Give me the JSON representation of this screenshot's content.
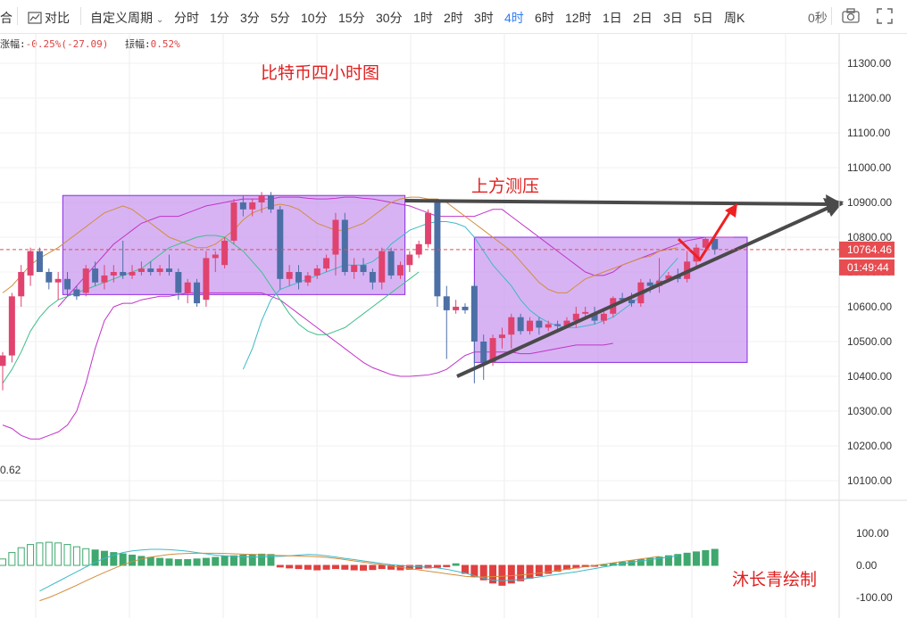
{
  "toolbar": {
    "left_partial": "合",
    "compare_label": "对比",
    "custom_period_label": "自定义周期",
    "periods": [
      "分时",
      "1分",
      "3分",
      "5分",
      "10分",
      "15分",
      "30分",
      "1时",
      "2时",
      "3时",
      "4时",
      "6时",
      "12时",
      "1日",
      "2日",
      "3日",
      "5日",
      "周K"
    ],
    "active_period": "4时",
    "seconds_label": "0秒"
  },
  "info_bar": {
    "change_label": "涨幅:",
    "change_value": "-0.25%(-27.09)",
    "amplitude_label": "振幅:",
    "amplitude_value": "0.52%"
  },
  "annotations": {
    "title": "比特币四小时图",
    "resistance": "上方测压",
    "author": "沐长青绘制",
    "left_value": "0.62"
  },
  "price_axis": {
    "ticks": [
      "11300.00",
      "11200.00",
      "11100.00",
      "11000.00",
      "10900.00",
      "10800.00",
      "10700.00",
      "10600.00",
      "10500.00",
      "10400.00",
      "10300.00",
      "10200.00",
      "10100.00"
    ],
    "current_price": "10764.46",
    "countdown": "01:49:44"
  },
  "macd_axis": {
    "ticks": [
      "100.00",
      "0.00",
      "-100.00"
    ]
  },
  "colors": {
    "up": "#e0436e",
    "down": "#4c6fa6",
    "boll_mid": "#d28e3c",
    "boll_band": "#c234c8",
    "ma_fast": "#3fb8c8",
    "ma_slow": "#3fbf8a",
    "box_fill": "#c99af0",
    "box_stroke": "#8a2be2",
    "trend_arrow": "#4a4a4a",
    "red_arrow": "#f02020",
    "macd_pos": "#3fa86e",
    "macd_neg": "#e04040",
    "price_tag": "#e74c50"
  },
  "chart_data": {
    "type": "candlestick",
    "timeframe": "4时",
    "y_range": [
      10040,
      11340
    ],
    "current_price": 10764.46,
    "candles": [
      {
        "o": 10430,
        "h": 10470,
        "l": 10360,
        "c": 10460
      },
      {
        "o": 10460,
        "h": 10640,
        "l": 10440,
        "c": 10630
      },
      {
        "o": 10630,
        "h": 10720,
        "l": 10600,
        "c": 10700
      },
      {
        "o": 10690,
        "h": 10770,
        "l": 10660,
        "c": 10760
      },
      {
        "o": 10760,
        "h": 10770,
        "l": 10700,
        "c": 10700
      },
      {
        "o": 10700,
        "h": 10710,
        "l": 10650,
        "c": 10670
      },
      {
        "o": 10670,
        "h": 10700,
        "l": 10620,
        "c": 10680
      },
      {
        "o": 10680,
        "h": 10700,
        "l": 10630,
        "c": 10650
      },
      {
        "o": 10650,
        "h": 10660,
        "l": 10620,
        "c": 10630
      },
      {
        "o": 10640,
        "h": 10720,
        "l": 10630,
        "c": 10710
      },
      {
        "o": 10710,
        "h": 10730,
        "l": 10660,
        "c": 10670
      },
      {
        "o": 10670,
        "h": 10720,
        "l": 10650,
        "c": 10690
      },
      {
        "o": 10690,
        "h": 10720,
        "l": 10670,
        "c": 10700
      },
      {
        "o": 10700,
        "h": 10790,
        "l": 10680,
        "c": 10690
      },
      {
        "o": 10690,
        "h": 10720,
        "l": 10680,
        "c": 10700
      },
      {
        "o": 10700,
        "h": 10730,
        "l": 10690,
        "c": 10710
      },
      {
        "o": 10710,
        "h": 10730,
        "l": 10690,
        "c": 10700
      },
      {
        "o": 10700,
        "h": 10720,
        "l": 10690,
        "c": 10710
      },
      {
        "o": 10710,
        "h": 10750,
        "l": 10690,
        "c": 10700
      },
      {
        "o": 10700,
        "h": 10710,
        "l": 10620,
        "c": 10640
      },
      {
        "o": 10640,
        "h": 10680,
        "l": 10610,
        "c": 10670
      },
      {
        "o": 10670,
        "h": 10680,
        "l": 10600,
        "c": 10610
      },
      {
        "o": 10620,
        "h": 10760,
        "l": 10600,
        "c": 10740
      },
      {
        "o": 10740,
        "h": 10760,
        "l": 10700,
        "c": 10750
      },
      {
        "o": 10720,
        "h": 10800,
        "l": 10710,
        "c": 10790
      },
      {
        "o": 10790,
        "h": 10910,
        "l": 10780,
        "c": 10900
      },
      {
        "o": 10900,
        "h": 10920,
        "l": 10860,
        "c": 10880
      },
      {
        "o": 10880,
        "h": 10910,
        "l": 10860,
        "c": 10900
      },
      {
        "o": 10900,
        "h": 10930,
        "l": 10870,
        "c": 10920
      },
      {
        "o": 10920,
        "h": 10930,
        "l": 10870,
        "c": 10880
      },
      {
        "o": 10880,
        "h": 10890,
        "l": 10650,
        "c": 10680
      },
      {
        "o": 10680,
        "h": 10720,
        "l": 10660,
        "c": 10700
      },
      {
        "o": 10700,
        "h": 10720,
        "l": 10650,
        "c": 10670
      },
      {
        "o": 10670,
        "h": 10700,
        "l": 10660,
        "c": 10690
      },
      {
        "o": 10690,
        "h": 10720,
        "l": 10680,
        "c": 10710
      },
      {
        "o": 10710,
        "h": 10750,
        "l": 10700,
        "c": 10740
      },
      {
        "o": 10750,
        "h": 10870,
        "l": 10690,
        "c": 10850
      },
      {
        "o": 10850,
        "h": 10870,
        "l": 10690,
        "c": 10700
      },
      {
        "o": 10700,
        "h": 10740,
        "l": 10680,
        "c": 10720
      },
      {
        "o": 10720,
        "h": 10740,
        "l": 10690,
        "c": 10700
      },
      {
        "o": 10700,
        "h": 10710,
        "l": 10650,
        "c": 10670
      },
      {
        "o": 10670,
        "h": 10770,
        "l": 10650,
        "c": 10760
      },
      {
        "o": 10760,
        "h": 10770,
        "l": 10680,
        "c": 10690
      },
      {
        "o": 10690,
        "h": 10730,
        "l": 10680,
        "c": 10720
      },
      {
        "o": 10720,
        "h": 10760,
        "l": 10700,
        "c": 10750
      },
      {
        "o": 10750,
        "h": 10790,
        "l": 10740,
        "c": 10780
      },
      {
        "o": 10780,
        "h": 10880,
        "l": 10770,
        "c": 10870
      },
      {
        "o": 10900,
        "h": 10910,
        "l": 10600,
        "c": 10630
      },
      {
        "o": 10630,
        "h": 10660,
        "l": 10450,
        "c": 10590
      },
      {
        "o": 10590,
        "h": 10620,
        "l": 10580,
        "c": 10600
      },
      {
        "o": 10600,
        "h": 10610,
        "l": 10580,
        "c": 10590
      },
      {
        "o": 10660,
        "h": 10670,
        "l": 10380,
        "c": 10500
      },
      {
        "o": 10500,
        "h": 10520,
        "l": 10390,
        "c": 10440
      },
      {
        "o": 10440,
        "h": 10520,
        "l": 10430,
        "c": 10510
      },
      {
        "o": 10510,
        "h": 10540,
        "l": 10480,
        "c": 10520
      },
      {
        "o": 10520,
        "h": 10580,
        "l": 10480,
        "c": 10570
      },
      {
        "o": 10570,
        "h": 10580,
        "l": 10520,
        "c": 10530
      },
      {
        "o": 10530,
        "h": 10570,
        "l": 10520,
        "c": 10560
      },
      {
        "o": 10560,
        "h": 10570,
        "l": 10520,
        "c": 10540
      },
      {
        "o": 10540,
        "h": 10560,
        "l": 10530,
        "c": 10550
      },
      {
        "o": 10550,
        "h": 10560,
        "l": 10530,
        "c": 10545
      },
      {
        "o": 10545,
        "h": 10570,
        "l": 10540,
        "c": 10560
      },
      {
        "o": 10560,
        "h": 10600,
        "l": 10540,
        "c": 10580
      },
      {
        "o": 10580,
        "h": 10600,
        "l": 10570,
        "c": 10585
      },
      {
        "o": 10580,
        "h": 10600,
        "l": 10550,
        "c": 10560
      },
      {
        "o": 10560,
        "h": 10590,
        "l": 10550,
        "c": 10580
      },
      {
        "o": 10580,
        "h": 10630,
        "l": 10570,
        "c": 10625
      },
      {
        "o": 10625,
        "h": 10640,
        "l": 10610,
        "c": 10620
      },
      {
        "o": 10620,
        "h": 10640,
        "l": 10600,
        "c": 10610
      },
      {
        "o": 10610,
        "h": 10680,
        "l": 10600,
        "c": 10670
      },
      {
        "o": 10670,
        "h": 10680,
        "l": 10640,
        "c": 10660
      },
      {
        "o": 10660,
        "h": 10740,
        "l": 10640,
        "c": 10675
      },
      {
        "o": 10680,
        "h": 10700,
        "l": 10670,
        "c": 10690
      },
      {
        "o": 10690,
        "h": 10710,
        "l": 10670,
        "c": 10680
      },
      {
        "o": 10680,
        "h": 10760,
        "l": 10670,
        "c": 10730
      },
      {
        "o": 10730,
        "h": 10780,
        "l": 10710,
        "c": 10770
      },
      {
        "o": 10770,
        "h": 10800,
        "l": 10760,
        "c": 10795
      },
      {
        "o": 10795,
        "h": 10800,
        "l": 10750,
        "c": 10765
      }
    ],
    "overlays": {
      "boll_mid": [
        10640,
        10660,
        10690,
        10720,
        10740,
        10755,
        10770,
        10790,
        10810,
        10830,
        10850,
        10870,
        10880,
        10890,
        10880,
        10860,
        10840,
        10820,
        10800,
        10790,
        10780,
        10770,
        10770,
        10780,
        10800,
        10820,
        10850,
        10870,
        10880,
        10890,
        10895,
        10890,
        10880,
        10860,
        10840,
        10830,
        10820,
        10820,
        10830,
        10840,
        10860,
        10880,
        10900,
        10910,
        10915,
        10915,
        10910,
        10910,
        10900,
        10880,
        10860,
        10840,
        10820,
        10800,
        10780,
        10760,
        10730,
        10700,
        10670,
        10650,
        10640,
        10640,
        10660,
        10680,
        10690,
        10700,
        10710,
        10720,
        10730,
        10740,
        10745,
        10760,
        10765,
        10770
      ],
      "boll_upper": [
        10600,
        10630,
        10660,
        10690,
        10720,
        10750,
        10780,
        10800,
        10820,
        10840,
        10850,
        10860,
        10860,
        10860,
        10870,
        10880,
        10890,
        10895,
        10900,
        10905,
        10910,
        10910,
        10910,
        10910,
        10915,
        10915,
        10915,
        10912,
        10910,
        10910,
        10912,
        10915,
        10915,
        10912,
        10910,
        10905,
        10900,
        10895,
        10890,
        10880,
        10870,
        10860,
        10860,
        10860,
        10860,
        10860,
        10870,
        10880,
        10880,
        10860,
        10840,
        10820,
        10800,
        10780,
        10760,
        10740,
        10720,
        10700,
        10690,
        10690,
        10700,
        10720,
        10730,
        10740,
        10750,
        10760,
        10770,
        10780,
        10790,
        10795,
        10800,
        10800,
        10800,
        10800
      ],
      "boll_lower": [
        10260,
        10250,
        10230,
        10220,
        10220,
        10230,
        10240,
        10260,
        10300,
        10380,
        10480,
        10560,
        10600,
        10610,
        10610,
        10620,
        10625,
        10630,
        10630,
        10635,
        10640,
        10640,
        10640,
        10640,
        10640,
        10640,
        10640,
        10640,
        10640,
        10630,
        10620,
        10600,
        10580,
        10560,
        10540,
        10520,
        10500,
        10480,
        10460,
        10440,
        10425,
        10415,
        10405,
        10400,
        10400,
        10402,
        10404,
        10410,
        10420,
        10440,
        10460,
        10470,
        10470,
        10470,
        10470,
        10470,
        10465,
        10465,
        10470,
        10475,
        10480,
        10485,
        10490,
        10490,
        10490,
        10490,
        10495
      ],
      "ma_fast": [
        10420,
        10480,
        10560,
        10620,
        10650,
        10660,
        10670,
        10680,
        10690,
        10700,
        10710,
        10720,
        10720,
        10720,
        10730,
        10750,
        10780,
        10800,
        10820,
        10830,
        10840,
        10845,
        10845,
        10840,
        10830,
        10800,
        10760,
        10720,
        10690,
        10660,
        10620,
        10590,
        10570,
        10555,
        10545,
        10540,
        10540,
        10545,
        10550,
        10560,
        10570,
        10590,
        10610,
        10630,
        10650,
        10680,
        10710,
        10740
      ],
      "ma_slow": [
        10380,
        10420,
        10470,
        10530,
        10570,
        10600,
        10620,
        10630,
        10640,
        10650,
        10660,
        10670,
        10680,
        10690,
        10700,
        10710,
        10730,
        10750,
        10770,
        10780,
        10790,
        10800,
        10805,
        10805,
        10800,
        10780,
        10760,
        10730,
        10700,
        10660,
        10620,
        10580,
        10550,
        10530,
        10520,
        10520,
        10530,
        10540,
        10560,
        10580,
        10600,
        10620,
        10640,
        10660,
        10680,
        10700
      ]
    },
    "macd": {
      "y_range": [
        -130,
        130
      ],
      "histogram": [
        20,
        40,
        55,
        65,
        70,
        72,
        70,
        65,
        58,
        52,
        48,
        44,
        40,
        36,
        32,
        28,
        25,
        22,
        20,
        18,
        18,
        20,
        22,
        25,
        28,
        30,
        32,
        34,
        35,
        34,
        -5,
        -8,
        -10,
        -12,
        -14,
        -12,
        -10,
        -12,
        -14,
        -15,
        -13,
        -10,
        -12,
        -14,
        -12,
        -10,
        -8,
        -6,
        -4,
        5,
        -25,
        -35,
        -45,
        -55,
        -62,
        -55,
        -48,
        -40,
        -32,
        -25,
        -18,
        -12,
        -8,
        -4,
        -2,
        2,
        6,
        10,
        14,
        18,
        22,
        26,
        30,
        34,
        38,
        42,
        46,
        50
      ],
      "dif": [
        -80,
        -65,
        -50,
        -35,
        -20,
        -5,
        10,
        22,
        32,
        40,
        45,
        48,
        50,
        50,
        49,
        47,
        44,
        40,
        36,
        32,
        30,
        28,
        27,
        26,
        26,
        27,
        28,
        30,
        32,
        34,
        33,
        30,
        26,
        22,
        18,
        14,
        10,
        6,
        2,
        0,
        -2,
        -4,
        -6,
        -8,
        -12,
        -18,
        -24,
        -32,
        -40,
        -46,
        -48,
        -46,
        -44,
        -40,
        -36,
        -32,
        -28,
        -24,
        -20,
        -15,
        -10,
        -5,
        0,
        5,
        10,
        14,
        18,
        22,
        26,
        30
      ],
      "dea": [
        -110,
        -100,
        -88,
        -75,
        -62,
        -48,
        -35,
        -22,
        -10,
        2,
        12,
        20,
        26,
        30,
        34,
        36,
        37,
        38,
        38,
        38,
        37,
        36,
        35,
        34,
        33,
        32,
        31,
        30,
        29,
        28,
        27,
        25,
        22,
        18,
        14,
        10,
        6,
        2,
        -2,
        -6,
        -10,
        -14,
        -18,
        -22,
        -26,
        -30,
        -34,
        -36,
        -36,
        -35,
        -34,
        -32,
        -30,
        -27,
        -24,
        -20,
        -16,
        -12,
        -8,
        -4,
        0,
        4,
        8,
        12,
        16,
        20,
        24,
        28
      ],
      "ticks": [
        100,
        0,
        -100
      ]
    },
    "resistance_level": 10900
  }
}
